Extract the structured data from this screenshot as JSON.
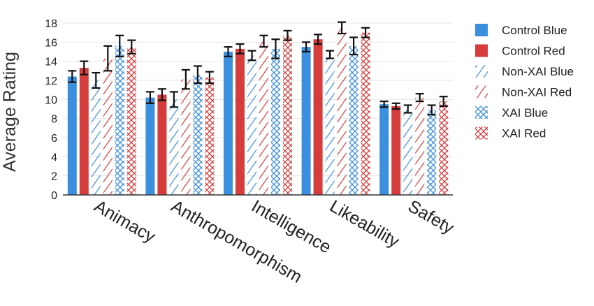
{
  "chart_data": {
    "type": "bar",
    "title": "",
    "xlabel": "",
    "ylabel": "Average Rating",
    "ylim": [
      0,
      18
    ],
    "yticks": [
      0,
      2,
      4,
      6,
      8,
      10,
      12,
      14,
      16,
      18
    ],
    "grid": "horizontal",
    "legend_position": "right",
    "categories": [
      "Animacy",
      "Anthropomorphism",
      "Intelligence",
      "Likeability",
      "Safety"
    ],
    "series": [
      {
        "name": "Control Blue",
        "pattern": "solid",
        "color": "#3b8fdf",
        "values": [
          12.4,
          10.2,
          15.0,
          15.5,
          9.5
        ],
        "error": [
          0.6,
          0.6,
          0.5,
          0.5,
          0.3
        ]
      },
      {
        "name": "Control Red",
        "pattern": "solid",
        "color": "#d63c3c",
        "values": [
          13.3,
          10.5,
          15.3,
          16.3,
          9.3
        ],
        "error": [
          0.7,
          0.6,
          0.5,
          0.5,
          0.3
        ]
      },
      {
        "name": "Non-XAI Blue",
        "pattern": "diagonal",
        "color": "#3b8fdf",
        "values": [
          12.0,
          10.0,
          14.6,
          14.7,
          9.0
        ],
        "error": [
          0.8,
          0.8,
          0.5,
          0.4,
          0.4
        ]
      },
      {
        "name": "Non-XAI Red",
        "pattern": "diagonal",
        "color": "#d63c3c",
        "values": [
          14.3,
          12.1,
          16.1,
          17.5,
          10.2
        ],
        "error": [
          1.3,
          1.0,
          0.6,
          0.6,
          0.4
        ]
      },
      {
        "name": "XAI Blue",
        "pattern": "cross",
        "color": "#3b8fdf",
        "values": [
          15.6,
          12.6,
          15.3,
          15.6,
          8.9
        ],
        "error": [
          1.1,
          0.9,
          1.0,
          0.9,
          0.5
        ]
      },
      {
        "name": "XAI Red",
        "pattern": "cross",
        "color": "#d63c3c",
        "values": [
          15.5,
          12.3,
          16.7,
          17.0,
          9.8
        ],
        "error": [
          0.7,
          0.6,
          0.5,
          0.5,
          0.5
        ]
      }
    ]
  }
}
